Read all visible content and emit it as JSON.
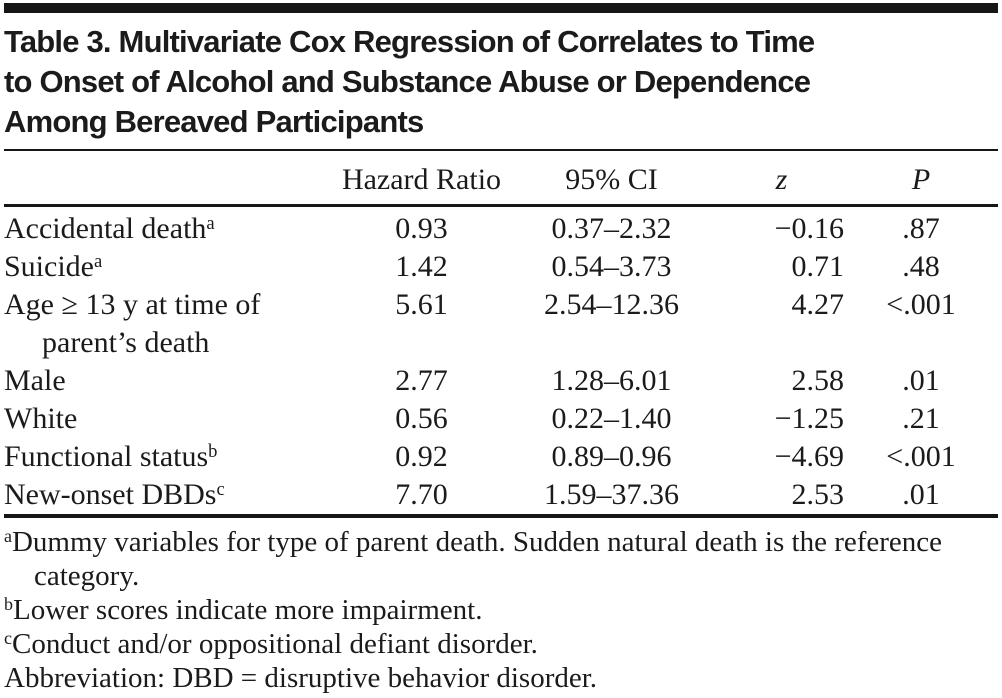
{
  "title_lines": [
    "Table 3. Multivariate Cox Regression of Correlates to Time",
    "to Onset of Alcohol and Substance Abuse or Dependence",
    "Among Bereaved Participants"
  ],
  "table": {
    "columns": {
      "stub": "",
      "hazard_ratio": "Hazard Ratio",
      "ci": "95% CI",
      "z": "z",
      "p": "P"
    },
    "rows": [
      {
        "label": "Accidental death",
        "sup": "a",
        "hr": "0.93",
        "ci": "0.37–2.32",
        "z": "−0.16",
        "p": ".87"
      },
      {
        "label": "Suicide",
        "sup": "a",
        "hr": "1.42",
        "ci": "0.54–3.73",
        "z": "0.71",
        "p": ".48"
      },
      {
        "label": "Age ≥ 13 y at time of",
        "label_cont": "parent’s death",
        "hr": "5.61",
        "ci": "2.54–12.36",
        "z": "4.27",
        "p": "<.001"
      },
      {
        "label": "Male",
        "hr": "2.77",
        "ci": "1.28–6.01",
        "z": "2.58",
        "p": ".01"
      },
      {
        "label": "White",
        "hr": "0.56",
        "ci": "0.22–1.40",
        "z": "−1.25",
        "p": ".21"
      },
      {
        "label": "Functional status",
        "sup": "b",
        "hr": "0.92",
        "ci": "0.89–0.96",
        "z": "−4.69",
        "p": "<.001"
      },
      {
        "label": "New-onset DBDs",
        "sup": "c",
        "hr": "7.70",
        "ci": "1.59–37.36",
        "z": "2.53",
        "p": ".01"
      }
    ]
  },
  "footnotes": [
    {
      "marker": "a",
      "text": "Dummy variables for type of parent death. Sudden natural death is the reference category."
    },
    {
      "marker": "b",
      "text": "Lower scores indicate more impairment."
    },
    {
      "marker": "c",
      "text": "Conduct and/or oppositional defiant disorder."
    },
    {
      "marker": "",
      "text": "Abbreviation: DBD = disruptive behavior disorder."
    }
  ]
}
